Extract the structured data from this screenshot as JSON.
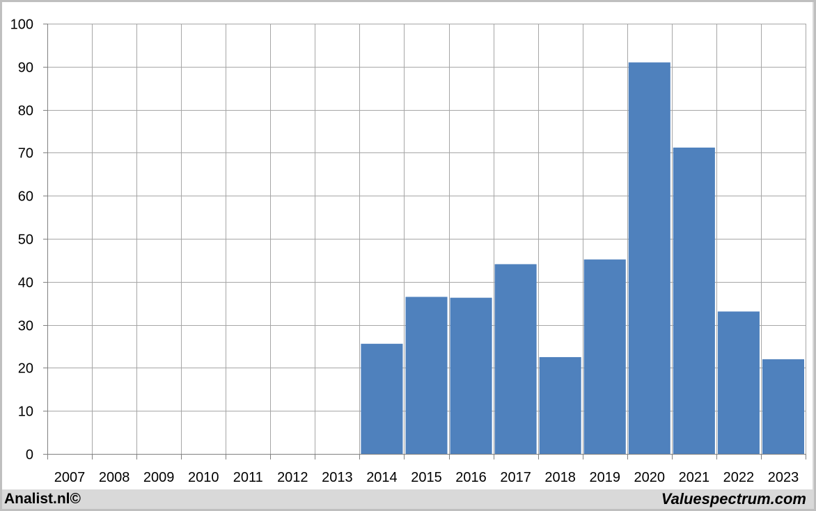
{
  "chart_data": {
    "type": "bar",
    "categories": [
      "2007",
      "2008",
      "2009",
      "2010",
      "2011",
      "2012",
      "2013",
      "2014",
      "2015",
      "2016",
      "2017",
      "2018",
      "2019",
      "2020",
      "2021",
      "2022",
      "2023"
    ],
    "values": [
      null,
      null,
      null,
      null,
      null,
      null,
      null,
      25.6,
      36.5,
      36.3,
      44.1,
      22.5,
      45.2,
      91.0,
      71.2,
      33.1,
      22.0
    ],
    "title": "",
    "xlabel": "",
    "ylabel": "",
    "ylim": [
      0,
      100
    ],
    "yticks": [
      0,
      10,
      20,
      30,
      40,
      50,
      60,
      70,
      80,
      90,
      100
    ],
    "grid": true,
    "legend": "none",
    "bar_color": "#4f81bd",
    "grid_color": "#a6a6a6"
  },
  "footer": {
    "left": "Analist.nl©",
    "right": "Valuespectrum.com"
  }
}
